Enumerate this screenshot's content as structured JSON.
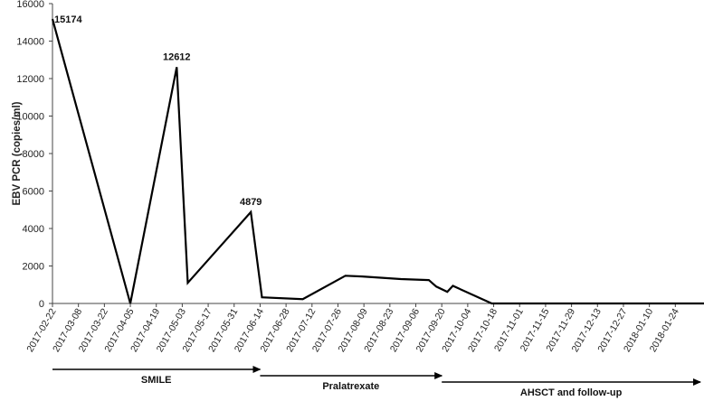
{
  "chart_data": {
    "type": "line",
    "title": "",
    "xlabel": "",
    "ylabel": "EBV PCR (copies/ml)",
    "ylim": [
      0,
      16000
    ],
    "yticks": [
      0,
      2000,
      4000,
      6000,
      8000,
      10000,
      12000,
      14000,
      16000
    ],
    "xlim": [
      "2017-02-22",
      "2018-02-07"
    ],
    "xticks": [
      "2017-02-22",
      "2017-03-08",
      "2017-03-22",
      "2017-04-05",
      "2017-04-19",
      "2017-05-03",
      "2017-05-17",
      "2017-05-31",
      "2017-06-14",
      "2017-06-28",
      "2017-07-12",
      "2017-07-26",
      "2017-08-09",
      "2017-08-23",
      "2017-09-06",
      "2017-09-20",
      "2017-10-04",
      "2017-10-18",
      "2017-11-01",
      "2017-11-15",
      "2017-11-29",
      "2017-12-13",
      "2017-12-27",
      "2018-01-10",
      "2018-01-24"
    ],
    "grid": false,
    "line_color": "#000000",
    "series": [
      {
        "x": [
          "2017-02-22",
          "2017-04-05",
          "2017-04-30",
          "2017-05-06",
          "2017-06-09",
          "2017-06-15",
          "2017-07-07",
          "2017-07-30",
          "2017-08-08",
          "2017-08-29",
          "2017-09-13",
          "2017-09-17",
          "2017-09-23",
          "2017-09-26",
          "2017-10-17",
          "2017-11-14",
          "2017-12-19",
          "2018-02-09"
        ],
        "values": [
          15174,
          0,
          12612,
          1100,
          4879,
          330,
          230,
          1480,
          1440,
          1300,
          1250,
          900,
          620,
          940,
          0,
          0,
          0,
          0
        ]
      }
    ],
    "data_labels": [
      {
        "x": "2017-02-22",
        "text": "15174"
      },
      {
        "x": "2017-04-30",
        "text": "12612"
      },
      {
        "x": "2017-06-09",
        "text": "4879"
      }
    ],
    "phases": [
      {
        "label": "SMILE",
        "start": "2017-02-22",
        "end": "2017-06-14"
      },
      {
        "label": "Pralatrexate",
        "start": "2017-06-14",
        "end": "2017-09-20"
      },
      {
        "label": "AHSCT and follow-up",
        "start": "2017-09-20",
        "end": "2018-02-07"
      }
    ]
  }
}
